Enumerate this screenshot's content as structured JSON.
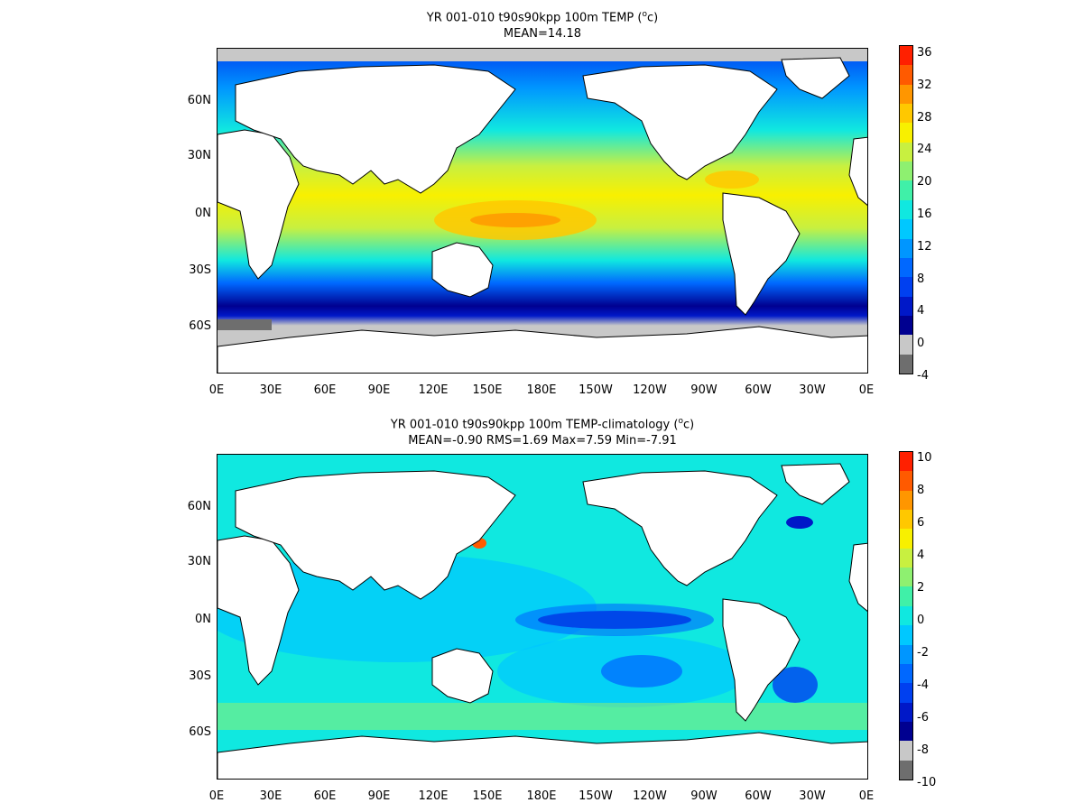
{
  "panels": [
    {
      "title": "YR 001-010 t90s90kpp 100m TEMP (",
      "title_sup": "o",
      "title_tail": "c)",
      "subtitle": "MEAN=14.18",
      "colorbar_labels": [
        "36",
        "32",
        "28",
        "24",
        "20",
        "16",
        "12",
        "8",
        "4",
        "0",
        "-4"
      ],
      "colorbar_colors": [
        "#ff2000",
        "#ff5a00",
        "#ff9600",
        "#ffc800",
        "#f8f000",
        "#c8f040",
        "#8ef070",
        "#40f0a8",
        "#10e8e0",
        "#00c8ff",
        "#0096ff",
        "#0068ff",
        "#0040f0",
        "#0018c8",
        "#000090",
        "#c8c8c8",
        "#6e6e6e"
      ]
    },
    {
      "title": "YR 001-010 t90s90kpp 100m TEMP-climatology (",
      "title_sup": "o",
      "title_tail": "c)",
      "subtitle": "MEAN=-0.90   RMS=1.69   Max=7.59   Min=-7.91",
      "colorbar_labels": [
        "10",
        "8",
        "6",
        "4",
        "2",
        "0",
        "-2",
        "-4",
        "-6",
        "-8",
        "-10"
      ],
      "colorbar_colors": [
        "#ff2000",
        "#ff5a00",
        "#ff9600",
        "#ffc800",
        "#f8f000",
        "#c8f040",
        "#8ef070",
        "#40f0a8",
        "#10e8e0",
        "#00c8ff",
        "#0096ff",
        "#0068ff",
        "#0040f0",
        "#0018c8",
        "#000090",
        "#c8c8c8",
        "#6e6e6e"
      ]
    }
  ],
  "lat_labels": [
    "60N",
    "30N",
    "0N",
    "30S",
    "60S"
  ],
  "lon_labels": [
    "0E",
    "30E",
    "60E",
    "90E",
    "120E",
    "150E",
    "180E",
    "150W",
    "120W",
    "90W",
    "60W",
    "30W",
    "0E"
  ],
  "colors": {
    "land": "#ffffff",
    "ice": "#c8c8c8"
  }
}
